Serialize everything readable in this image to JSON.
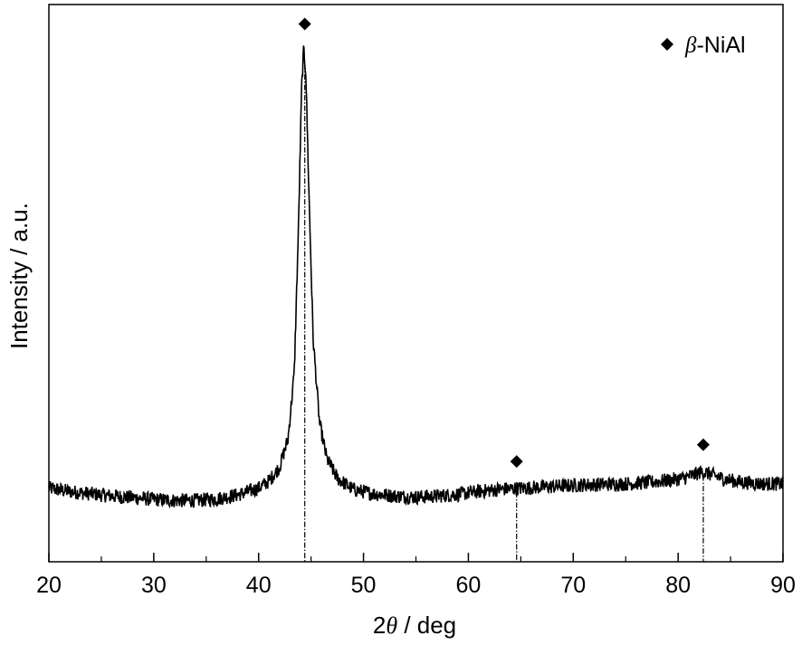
{
  "chart_data": {
    "type": "line",
    "xlabel_prefix": "2",
    "xlabel_symbol": "θ",
    "xlabel_suffix": " / deg",
    "ylabel": "Intensity / a.u.",
    "xlim": [
      20,
      90
    ],
    "ylim": [
      0,
      100
    ],
    "x_ticks": [
      20,
      30,
      40,
      50,
      60,
      70,
      80,
      90
    ],
    "y_ticks_labeled": false,
    "grid": false,
    "legend": {
      "placement": "top-right",
      "marker": "diamond",
      "label_symbol": "β",
      "label_text": "-NiAl"
    },
    "series": [
      {
        "name": "β-NiAl",
        "style": "noisy line",
        "x": [
          20,
          22,
          24,
          26,
          28,
          30,
          32,
          34,
          36,
          38,
          40,
          41,
          42,
          42.8,
          43.4,
          43.8,
          44.1,
          44.3,
          44.5,
          44.8,
          45.2,
          45.8,
          46.5,
          47.5,
          49,
          51,
          53,
          55,
          57,
          59,
          61,
          63,
          65,
          67,
          69,
          71,
          73,
          75,
          77,
          79,
          80.5,
          81.5,
          82.3,
          83.2,
          84.5,
          86,
          88,
          90
        ],
        "y": [
          13.2,
          12.6,
          12.2,
          11.8,
          11.5,
          11.2,
          11.0,
          11.0,
          11.3,
          12.0,
          13.2,
          14.5,
          17.0,
          22.0,
          34.0,
          60.0,
          85.0,
          92.0,
          88.0,
          66.0,
          40.0,
          25.0,
          18.5,
          15.0,
          13.0,
          12.2,
          11.8,
          11.6,
          11.8,
          12.1,
          12.6,
          13.0,
          13.2,
          13.4,
          13.6,
          13.8,
          13.9,
          14.0,
          14.2,
          14.6,
          15.0,
          15.6,
          16.2,
          15.6,
          14.8,
          14.3,
          14.0,
          14.0
        ]
      }
    ],
    "peaks": [
      {
        "x": 44.4,
        "marker": "diamond",
        "y_marker": 96.5
      },
      {
        "x": 64.6,
        "marker": "diamond",
        "y_marker": 18.0
      },
      {
        "x": 82.4,
        "marker": "diamond",
        "y_marker": 21.0
      }
    ]
  }
}
